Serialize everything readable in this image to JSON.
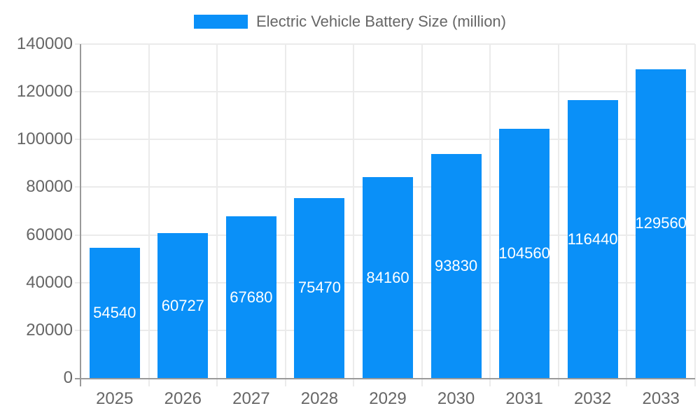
{
  "chart_data": {
    "type": "bar",
    "title": "Electric Vehicle Battery Size (million)",
    "legend": {
      "position": "top",
      "label": "Electric Vehicle Battery Size (million)"
    },
    "categories": [
      "2025",
      "2026",
      "2027",
      "2028",
      "2029",
      "2030",
      "2031",
      "2032",
      "2033"
    ],
    "values": [
      54540,
      60727,
      67680,
      75470,
      84160,
      93830,
      104560,
      116440,
      129560
    ],
    "xlabel": "",
    "ylabel": "",
    "ylim": [
      0,
      140000
    ],
    "ytick_step": 20000,
    "ytick_labels": [
      "0",
      "20000",
      "40000",
      "60000",
      "80000",
      "100000",
      "120000",
      "140000"
    ],
    "grid": true,
    "value_label_style": "white-centered-inside-bar",
    "bar_color": "#0a90f8",
    "grid_color": "#ebebeb",
    "axis_line_color": "#9a9a9a",
    "tick_text_color": "#666666"
  }
}
